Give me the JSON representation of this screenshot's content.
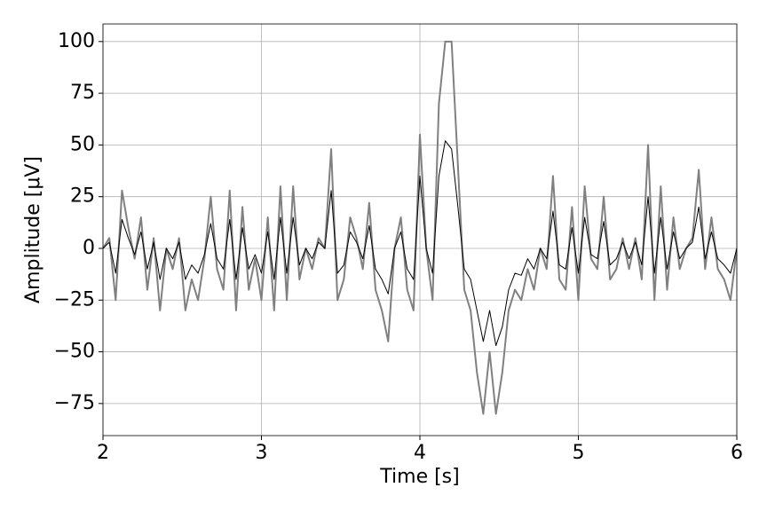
{
  "chart_data": {
    "type": "line",
    "xlabel": "Time [s]",
    "ylabel": "Amplitude [μV]",
    "x": [
      2,
      2.04,
      2.08,
      2.12,
      2.16,
      2.2,
      2.24,
      2.28,
      2.32,
      2.36,
      2.4,
      2.44,
      2.48,
      2.52,
      2.56,
      2.6,
      2.64,
      2.68,
      2.72,
      2.76,
      2.8,
      2.84,
      2.88,
      2.92,
      2.96,
      3,
      3.04,
      3.08,
      3.12,
      3.16,
      3.2,
      3.24,
      3.28,
      3.32,
      3.36,
      3.4,
      3.44,
      3.48,
      3.52,
      3.56,
      3.6,
      3.64,
      3.68,
      3.72,
      3.76,
      3.8,
      3.84,
      3.88,
      3.92,
      3.96,
      4,
      4.04,
      4.08,
      4.12,
      4.16,
      4.2,
      4.24,
      4.28,
      4.32,
      4.36,
      4.4,
      4.44,
      4.48,
      4.52,
      4.56,
      4.6,
      4.64,
      4.68,
      4.72,
      4.76,
      4.8,
      4.84,
      4.88,
      4.92,
      4.96,
      5,
      5.04,
      5.08,
      5.12,
      5.16,
      5.2,
      5.24,
      5.28,
      5.32,
      5.36,
      5.4,
      5.44,
      5.48,
      5.52,
      5.56,
      5.6,
      5.64,
      5.68,
      5.72,
      5.76,
      5.8,
      5.84,
      5.88,
      5.92,
      5.96,
      6
    ],
    "series": [
      {
        "color": "#808080",
        "width": 2,
        "values": [
          0,
          5,
          -25,
          28,
          10,
          -5,
          15,
          -20,
          5,
          -30,
          0,
          -10,
          5,
          -30,
          -15,
          -25,
          -5,
          25,
          -10,
          -20,
          28,
          -30,
          20,
          -20,
          -5,
          -25,
          15,
          -30,
          30,
          -25,
          30,
          -15,
          0,
          -10,
          5,
          0,
          48,
          -25,
          -15,
          15,
          5,
          -10,
          22,
          -20,
          -30,
          -45,
          0,
          15,
          -20,
          -30,
          55,
          0,
          -25,
          70,
          100,
          100,
          40,
          -20,
          -30,
          -60,
          -80,
          -50,
          -80,
          -60,
          -30,
          -20,
          -25,
          -10,
          -20,
          0,
          -10,
          35,
          -15,
          -20,
          20,
          -25,
          30,
          -5,
          -10,
          25,
          -15,
          -10,
          5,
          -10,
          5,
          -15,
          50,
          -25,
          30,
          -20,
          15,
          -10,
          0,
          5,
          38,
          -10,
          15,
          -10,
          -15,
          -25,
          0
        ]
      },
      {
        "color": "#000000",
        "width": 1,
        "values": [
          0,
          3,
          -12,
          14,
          5,
          -3,
          8,
          -10,
          3,
          -15,
          0,
          -5,
          3,
          -15,
          -8,
          -12,
          -3,
          12,
          -5,
          -10,
          14,
          -15,
          10,
          -10,
          -3,
          -12,
          8,
          -15,
          15,
          -12,
          15,
          -8,
          0,
          -5,
          3,
          0,
          28,
          -12,
          -8,
          8,
          3,
          -5,
          11,
          -10,
          -15,
          -22,
          0,
          8,
          -10,
          -15,
          35,
          0,
          -12,
          35,
          52,
          48,
          20,
          -10,
          -15,
          -30,
          -45,
          -30,
          -47,
          -38,
          -20,
          -12,
          -13,
          -5,
          -10,
          0,
          -5,
          18,
          -8,
          -10,
          10,
          -12,
          15,
          -3,
          -5,
          13,
          -8,
          -5,
          3,
          -5,
          3,
          -8,
          25,
          -12,
          15,
          -10,
          8,
          -5,
          0,
          3,
          20,
          -5,
          8,
          -5,
          -8,
          -12,
          0
        ]
      }
    ],
    "xlim": [
      2,
      6
    ],
    "ylim": [
      -90.5,
      108.5
    ],
    "xticks": [
      2,
      3,
      4,
      5,
      6
    ],
    "yticks": [
      {
        "value": -75,
        "label": "−75"
      },
      {
        "value": -50,
        "label": "−50"
      },
      {
        "value": -25,
        "label": "−25"
      },
      0,
      25,
      50,
      75,
      100
    ],
    "grid": true
  }
}
